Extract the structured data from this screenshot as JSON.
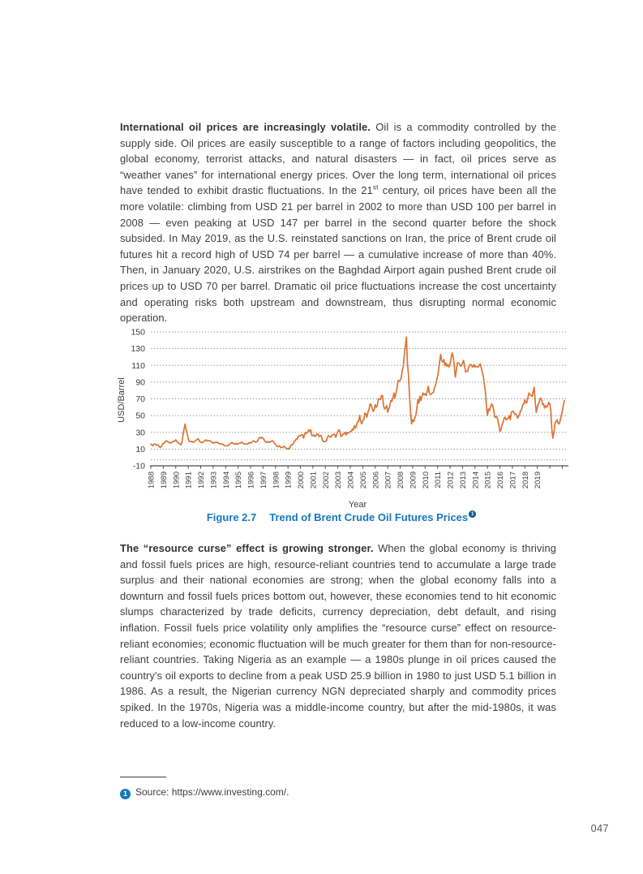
{
  "page": {
    "number": "047"
  },
  "colors": {
    "accent_blue": "#1478bf",
    "line_orange": "#dc7434",
    "body_text": "#3e3e3e"
  },
  "para1": {
    "lead": "International oil prices are increasingly volatile.",
    "seg1": " Oil is a commodity controlled by the supply side. Oil prices are easily susceptible to a range of factors including geopolitics, the global economy, terrorist attacks, and natural disasters — in fact, oil prices serve as “weather vanes” for international energy prices. Over the long term, international oil prices have tended to exhibit drastic fluctuations. In the 21",
    "sup": "st",
    "seg2": " century, oil prices have been all the more volatile: climbing from USD 21 per barrel in 2002 to more than USD 100 per barrel in 2008 — even peaking at USD 147 per barrel in the second quarter before the shock subsided. In May 2019, as the U.S. reinstated sanctions on Iran, the price of Brent crude oil futures hit a record high of USD 74 per barrel — a cumulative increase of more than 40%. Then, in January 2020, U.S. airstrikes on the Baghdad Airport again pushed Brent crude oil prices up to USD 70 per barrel. Dramatic oil price fluctuations increase the cost uncertainty and operating risks both upstream and downstream, thus disrupting normal economic operation."
  },
  "figure": {
    "label": "Figure 2.7",
    "title": "Trend of Brent Crude Oil Futures Prices",
    "footnote_marker": "1"
  },
  "para2": {
    "lead": "The “resource curse” effect is growing stronger.",
    "body": " When the global economy is thriving and fossil fuels prices are high, resource-reliant countries tend to accumulate a large trade surplus and their national economies are strong; when the global economy falls into a downturn and fossil fuels prices bottom out, however, these economies tend to hit economic slumps characterized by trade deficits, currency depreciation, debt default, and rising inflation. Fossil fuels price volatility only amplifies the “resource curse” effect on resource-reliant economies; economic fluctuation will be much greater for them than for non-resource-reliant countries. Taking Nigeria as an example — a 1980s plunge in oil prices caused the country's oil exports to decline from a peak USD 25.9 billion in 1980 to just USD 5.1 billion in 1986. As a result, the Nigerian currency NGN depreciated sharply and commodity prices spiked. In the 1970s, Nigeria was a middle-income country, but after the mid-1980s, it was reduced to a low-income country."
  },
  "footnote": {
    "marker": "1",
    "text": "Source: https://www.investing.com/."
  },
  "chart_data": {
    "type": "line",
    "title": "Trend of Brent Crude Oil Futures Prices",
    "xlabel": "Year",
    "ylabel": "USD/Barrel",
    "ylim": [
      -10,
      150
    ],
    "y_ticks": [
      150,
      130,
      110,
      90,
      70,
      50,
      30,
      10,
      -10
    ],
    "x_tick_labels": [
      "1988",
      "1989",
      "1990",
      "1991",
      "1992",
      "1993",
      "1994",
      "1995",
      "1996",
      "1997",
      "1998",
      "1999",
      "2000",
      "2001",
      "2002",
      "2003",
      "2004",
      "2005",
      "2006",
      "2007",
      "2008",
      "2009",
      "2010",
      "2011",
      "2012",
      "2013",
      "2014",
      "2015",
      "2016",
      "2017",
      "2018",
      "2019"
    ],
    "grid": "dotted-horizontal",
    "line_color": "#dc7434",
    "series": [
      {
        "name": "Brent crude oil futures price",
        "start_year": 1988,
        "frequency": "monthly",
        "values": [
          16,
          15,
          14,
          16,
          16,
          15,
          15,
          15,
          13,
          12,
          13,
          15,
          17,
          17,
          19,
          20,
          19,
          18,
          18,
          17,
          18,
          19,
          19,
          20,
          21,
          19,
          18,
          17,
          16,
          15,
          18,
          27,
          34,
          40,
          33,
          28,
          23,
          19,
          19,
          19,
          19,
          18,
          19,
          20,
          21,
          22,
          22,
          19,
          18,
          18,
          18,
          19,
          20,
          21,
          20,
          20,
          20,
          20,
          19,
          18,
          17,
          18,
          18,
          18,
          18,
          17,
          17,
          16,
          16,
          16,
          15,
          14,
          14,
          14,
          14,
          15,
          16,
          17,
          18,
          17,
          16,
          16,
          17,
          16,
          16,
          17,
          17,
          18,
          18,
          17,
          16,
          16,
          16,
          16,
          17,
          18,
          17,
          18,
          19,
          20,
          19,
          18,
          19,
          20,
          23,
          24,
          23,
          24,
          23,
          21,
          19,
          18,
          19,
          18,
          18,
          19,
          19,
          20,
          19,
          17,
          15,
          14,
          13,
          13,
          14,
          12,
          12,
          12,
          13,
          13,
          11,
          10,
          11,
          10,
          12,
          15,
          15,
          16,
          19,
          20,
          22,
          22,
          25,
          26,
          26,
          27,
          27,
          23,
          27,
          30,
          29,
          30,
          33,
          31,
          33,
          26,
          26,
          27,
          25,
          26,
          28,
          28,
          25,
          26,
          26,
          21,
          19,
          19,
          19,
          20,
          24,
          26,
          25,
          24,
          26,
          27,
          28,
          27,
          24,
          28,
          31,
          33,
          31,
          25,
          26,
          28,
          28,
          30,
          27,
          30,
          29,
          30,
          31,
          31,
          34,
          33,
          38,
          35,
          38,
          43,
          43,
          50,
          43,
          40,
          44,
          45,
          53,
          52,
          48,
          54,
          57,
          64,
          63,
          59,
          55,
          57,
          63,
          60,
          62,
          70,
          70,
          69,
          74,
          74,
          62,
          58,
          59,
          62,
          54,
          58,
          62,
          68,
          67,
          71,
          77,
          71,
          77,
          83,
          92,
          91,
          92,
          95,
          104,
          109,
          123,
          133,
          144,
          113,
          98,
          72,
          53,
          40,
          45,
          43,
          47,
          50,
          58,
          69,
          65,
          73,
          68,
          73,
          77,
          75,
          76,
          74,
          79,
          85,
          77,
          75,
          76,
          77,
          78,
          83,
          86,
          92,
          97,
          104,
          115,
          123,
          115,
          114,
          117,
          110,
          113,
          109,
          111,
          108,
          111,
          119,
          125,
          120,
          110,
          96,
          103,
          113,
          113,
          112,
          109,
          110,
          113,
          116,
          109,
          102,
          103,
          103,
          108,
          111,
          111,
          109,
          108,
          111,
          108,
          109,
          108,
          108,
          110,
          112,
          107,
          102,
          97,
          88,
          79,
          62,
          50,
          58,
          56,
          60,
          64,
          62,
          57,
          48,
          48,
          49,
          45,
          38,
          31,
          33,
          39,
          42,
          47,
          48,
          45,
          46,
          47,
          50,
          45,
          54,
          55,
          55,
          52,
          52,
          51,
          47,
          49,
          52,
          56,
          58,
          63,
          64,
          69,
          65,
          66,
          72,
          77,
          75,
          74,
          73,
          79,
          84,
          66,
          54,
          60,
          64,
          67,
          71,
          70,
          63,
          64,
          59,
          62,
          60,
          62,
          66,
          64,
          56,
          33,
          23,
          30,
          41,
          43,
          45,
          41,
          40,
          44,
          50,
          55,
          62,
          68
        ]
      }
    ]
  }
}
